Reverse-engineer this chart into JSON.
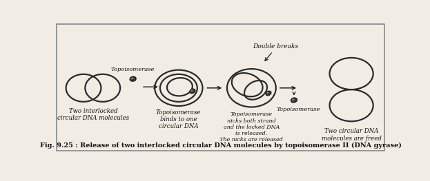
{
  "title": "Fig. 9.25 : Release of two interlocked circular DNA molecules by topoisomerase II (DNA gyrase)",
  "background_color": "#f2ede4",
  "border_color": "#888888",
  "labels": {
    "stage1": "Two interlocked\ncircular DNA molecules",
    "stage2": "Topoisomerase\nbinds to one\ncircular DNA",
    "stage3": "Topoisomerase\nnicks both strand\nand the locked DNA\nis released.\nThe nicks are released",
    "stage4_enzyme": "Topoisomerase",
    "stage5": "Two circular DNA\nmolecules are freed",
    "double_breaks": "Double breaks",
    "topoisomerase_label": "Topoisomerase"
  },
  "circle_color": "#2a2a2a",
  "enzyme_fill": "#3a3a3a",
  "enzyme_edge": "#111111",
  "arrow_color": "#222222",
  "text_color": "#111111",
  "title_color": "#111111",
  "lw_circle": 1.6,
  "lw_arrow": 1.0
}
